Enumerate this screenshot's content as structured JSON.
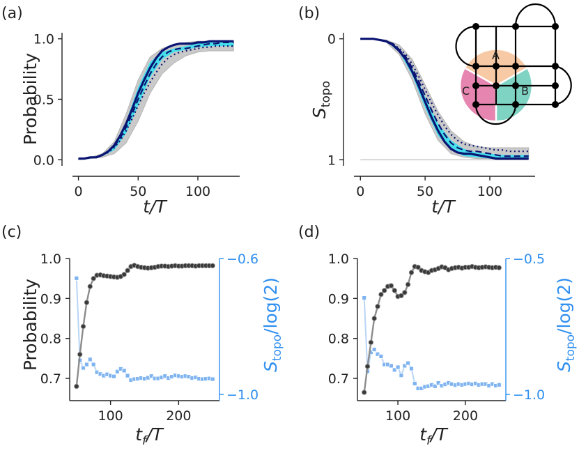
{
  "chart_data": [
    {
      "panel": "(a)",
      "type": "line",
      "xlabel": "t/T",
      "ylabel": "Probability",
      "xlim": [
        -5,
        135
      ],
      "ylim": [
        -0.05,
        1.05
      ],
      "xticks": [
        "0",
        "50",
        "100"
      ],
      "yticks": [
        "0.0",
        "0.5",
        "1.0"
      ],
      "series": [
        {
          "name": "bound-upper",
          "style": "gray",
          "x": [
            0,
            10,
            20,
            30,
            40,
            50,
            60,
            70,
            80,
            90,
            100,
            110,
            120,
            130
          ],
          "y": [
            0.01,
            0.02,
            0.05,
            0.15,
            0.38,
            0.66,
            0.85,
            0.92,
            0.95,
            0.97,
            0.98,
            0.98,
            0.98,
            0.98
          ]
        },
        {
          "name": "bound-lower",
          "style": "gray",
          "x": [
            0,
            10,
            20,
            30,
            40,
            50,
            60,
            70,
            80,
            90,
            100,
            110,
            120,
            130
          ],
          "y": [
            0.0,
            0.01,
            0.02,
            0.05,
            0.14,
            0.32,
            0.55,
            0.71,
            0.8,
            0.86,
            0.89,
            0.9,
            0.9,
            0.9
          ]
        },
        {
          "name": "cyan-upper",
          "style": "cyan",
          "x": [
            0,
            10,
            20,
            30,
            40,
            50,
            60,
            70,
            80,
            90,
            100,
            110,
            120,
            130
          ],
          "y": [
            0.01,
            0.02,
            0.04,
            0.12,
            0.32,
            0.6,
            0.81,
            0.89,
            0.92,
            0.94,
            0.96,
            0.97,
            0.97,
            0.97
          ]
        },
        {
          "name": "cyan-lower",
          "style": "cyan",
          "x": [
            0,
            10,
            20,
            30,
            40,
            50,
            60,
            70,
            80,
            90,
            100,
            110,
            120,
            130
          ],
          "y": [
            0.0,
            0.01,
            0.03,
            0.08,
            0.22,
            0.45,
            0.68,
            0.83,
            0.89,
            0.91,
            0.93,
            0.94,
            0.94,
            0.94
          ]
        },
        {
          "name": "solid",
          "style": "solid",
          "x": [
            0,
            5,
            10,
            15,
            20,
            25,
            30,
            35,
            40,
            45,
            50,
            55,
            60,
            65,
            70,
            75,
            80,
            85,
            90,
            95,
            100,
            105,
            110,
            115,
            120,
            125,
            130
          ],
          "y": [
            0.01,
            0.01,
            0.02,
            0.02,
            0.04,
            0.07,
            0.12,
            0.2,
            0.3,
            0.42,
            0.55,
            0.66,
            0.76,
            0.84,
            0.9,
            0.93,
            0.95,
            0.96,
            0.96,
            0.96,
            0.97,
            0.97,
            0.98,
            0.98,
            0.98,
            0.98,
            0.98
          ]
        },
        {
          "name": "dashed",
          "style": "dashed",
          "x": [
            0,
            5,
            10,
            15,
            20,
            25,
            30,
            35,
            40,
            45,
            50,
            55,
            60,
            65,
            70,
            75,
            80,
            85,
            90,
            95,
            100,
            105,
            110,
            115,
            120,
            125,
            130
          ],
          "y": [
            0.01,
            0.01,
            0.02,
            0.02,
            0.04,
            0.07,
            0.11,
            0.18,
            0.27,
            0.38,
            0.5,
            0.61,
            0.71,
            0.79,
            0.85,
            0.89,
            0.91,
            0.92,
            0.92,
            0.93,
            0.94,
            0.95,
            0.96,
            0.96,
            0.97,
            0.97,
            0.97
          ]
        },
        {
          "name": "dotted",
          "style": "dotted",
          "x": [
            0,
            5,
            10,
            15,
            20,
            25,
            30,
            35,
            40,
            45,
            50,
            55,
            60,
            65,
            70,
            75,
            80,
            85,
            90,
            95,
            100,
            105,
            110,
            115,
            120,
            125,
            130
          ],
          "y": [
            0.01,
            0.01,
            0.02,
            0.02,
            0.04,
            0.06,
            0.1,
            0.16,
            0.24,
            0.34,
            0.45,
            0.55,
            0.64,
            0.72,
            0.79,
            0.84,
            0.87,
            0.89,
            0.9,
            0.91,
            0.92,
            0.93,
            0.93,
            0.94,
            0.94,
            0.94,
            0.94
          ]
        }
      ]
    },
    {
      "panel": "(b)",
      "type": "line",
      "xlabel": "t/T",
      "ylabel": "S_topo",
      "xlim": [
        -5,
        135
      ],
      "ylim": [
        -0.05,
        1.05
      ],
      "y_inverted": true,
      "reference_line": 1,
      "xticks": [
        "0",
        "50",
        "100"
      ],
      "yticks": [
        "0",
        "1"
      ],
      "series": [
        {
          "name": "bound-upper",
          "style": "gray",
          "x": [
            0,
            10,
            20,
            30,
            40,
            50,
            60,
            70,
            80,
            90,
            100,
            110,
            120,
            130
          ],
          "y": [
            0.0,
            0.0,
            0.01,
            0.05,
            0.17,
            0.38,
            0.6,
            0.76,
            0.85,
            0.89,
            0.9,
            0.9,
            0.9,
            0.9
          ]
        },
        {
          "name": "bound-lower",
          "style": "gray",
          "x": [
            0,
            10,
            20,
            30,
            40,
            50,
            60,
            70,
            80,
            90,
            100,
            110,
            120,
            130
          ],
          "y": [
            0.0,
            0.0,
            0.03,
            0.13,
            0.34,
            0.62,
            0.84,
            0.95,
            0.98,
            0.99,
            0.99,
            0.99,
            0.99,
            0.99
          ]
        },
        {
          "name": "cyan-upper",
          "style": "cyan",
          "x": [
            0,
            10,
            20,
            30,
            40,
            50,
            60,
            70,
            80,
            90,
            100,
            110,
            120,
            130
          ],
          "y": [
            0.0,
            0.0,
            0.02,
            0.08,
            0.24,
            0.48,
            0.7,
            0.84,
            0.91,
            0.94,
            0.95,
            0.96,
            0.96,
            0.96
          ]
        },
        {
          "name": "cyan-lower",
          "style": "cyan",
          "x": [
            0,
            10,
            20,
            30,
            40,
            50,
            60,
            70,
            80,
            90,
            100,
            110,
            120,
            130
          ],
          "y": [
            0.0,
            0.0,
            0.02,
            0.11,
            0.3,
            0.57,
            0.8,
            0.92,
            0.97,
            0.98,
            0.99,
            0.99,
            0.99,
            0.99
          ]
        },
        {
          "name": "solid",
          "style": "solid",
          "x": [
            0,
            5,
            10,
            15,
            20,
            25,
            30,
            35,
            40,
            45,
            50,
            55,
            60,
            65,
            70,
            75,
            80,
            85,
            90,
            95,
            100,
            105,
            110,
            115,
            120,
            125,
            130
          ],
          "y": [
            0.0,
            0.0,
            0.0,
            0.01,
            0.02,
            0.05,
            0.1,
            0.17,
            0.27,
            0.39,
            0.52,
            0.65,
            0.76,
            0.85,
            0.91,
            0.94,
            0.95,
            0.95,
            0.96,
            0.97,
            0.98,
            0.99,
            0.99,
            0.99,
            0.99,
            0.99,
            0.99
          ]
        },
        {
          "name": "dashed",
          "style": "dashed",
          "x": [
            0,
            5,
            10,
            15,
            20,
            25,
            30,
            35,
            40,
            45,
            50,
            55,
            60,
            65,
            70,
            75,
            80,
            85,
            90,
            95,
            100,
            105,
            110,
            115,
            120,
            125,
            130
          ],
          "y": [
            0.0,
            0.0,
            0.0,
            0.01,
            0.02,
            0.04,
            0.09,
            0.15,
            0.24,
            0.35,
            0.47,
            0.59,
            0.7,
            0.79,
            0.86,
            0.9,
            0.92,
            0.93,
            0.93,
            0.94,
            0.95,
            0.96,
            0.97,
            0.97,
            0.97,
            0.97,
            0.97
          ]
        },
        {
          "name": "dotted",
          "style": "dotted",
          "x": [
            0,
            5,
            10,
            15,
            20,
            25,
            30,
            35,
            40,
            45,
            50,
            55,
            60,
            65,
            70,
            75,
            80,
            85,
            90,
            95,
            100,
            105,
            110,
            115,
            120,
            125,
            130
          ],
          "y": [
            0.0,
            0.0,
            0.0,
            0.01,
            0.02,
            0.04,
            0.08,
            0.13,
            0.21,
            0.31,
            0.42,
            0.53,
            0.63,
            0.72,
            0.79,
            0.84,
            0.87,
            0.88,
            0.89,
            0.9,
            0.91,
            0.92,
            0.92,
            0.93,
            0.93,
            0.93,
            0.93
          ]
        }
      ],
      "inset": {
        "region_labels": [
          "A",
          "B",
          "C"
        ],
        "region_colors": [
          "#f7c9a4",
          "#7fd3c3",
          "#e585b0"
        ]
      }
    },
    {
      "panel": "(c)",
      "type": "line",
      "xlabel": "t_f/T",
      "ylabel": "Probability",
      "ylabel_right": "S_topo/log(2)",
      "xlim": [
        40,
        260
      ],
      "ylim": [
        0.66,
        1.0
      ],
      "ylim_right": [
        -1.0,
        -0.6
      ],
      "xticks": [
        "100",
        "200"
      ],
      "yticks": [
        "0.7",
        "0.8",
        "0.9",
        "1.0"
      ],
      "yticks_right": [
        "−0.6",
        "−1.0"
      ],
      "x": [
        50,
        55,
        60,
        65,
        70,
        75,
        80,
        85,
        90,
        95,
        100,
        105,
        110,
        115,
        120,
        125,
        130,
        135,
        140,
        145,
        150,
        155,
        160,
        165,
        170,
        175,
        180,
        185,
        190,
        195,
        200,
        205,
        210,
        215,
        220,
        225,
        230,
        235,
        240,
        245,
        250
      ],
      "series": [
        {
          "name": "Probability",
          "axis": "left",
          "values": [
            0.68,
            0.76,
            0.83,
            0.89,
            0.93,
            0.95,
            0.958,
            0.959,
            0.957,
            0.956,
            0.955,
            0.954,
            0.953,
            0.955,
            0.96,
            0.97,
            0.98,
            0.983,
            0.98,
            0.978,
            0.977,
            0.976,
            0.977,
            0.978,
            0.98,
            0.981,
            0.981,
            0.98,
            0.981,
            0.982,
            0.981,
            0.981,
            0.982,
            0.982,
            0.982,
            0.981,
            0.982,
            0.982,
            0.982,
            0.982,
            0.982
          ]
        },
        {
          "name": "S_topo/log(2)",
          "axis": "right",
          "values": [
            -0.658,
            -0.9,
            -0.922,
            -0.912,
            -0.897,
            -0.912,
            -0.935,
            -0.94,
            -0.945,
            -0.941,
            -0.945,
            -0.947,
            -0.933,
            -0.925,
            -0.93,
            -0.945,
            -0.958,
            -0.955,
            -0.954,
            -0.952,
            -0.954,
            -0.951,
            -0.946,
            -0.953,
            -0.953,
            -0.95,
            -0.946,
            -0.952,
            -0.948,
            -0.944,
            -0.946,
            -0.948,
            -0.946,
            -0.948,
            -0.952,
            -0.95,
            -0.954,
            -0.955,
            -0.954,
            -0.953,
            -0.955
          ]
        }
      ]
    },
    {
      "panel": "(d)",
      "type": "line",
      "xlabel": "t_f/T",
      "ylabel": "",
      "ylabel_right": "S_topo/log(2)",
      "xlim": [
        40,
        260
      ],
      "ylim": [
        0.66,
        1.0
      ],
      "ylim_right": [
        -1.0,
        -0.5
      ],
      "xticks": [
        "100",
        "200"
      ],
      "yticks": [
        "0.7",
        "0.8",
        "0.9",
        "1.0"
      ],
      "yticks_right": [
        "−0.5",
        "−1.0"
      ],
      "x": [
        50,
        55,
        60,
        65,
        70,
        75,
        80,
        85,
        90,
        95,
        100,
        105,
        110,
        115,
        120,
        125,
        130,
        135,
        140,
        145,
        150,
        155,
        160,
        165,
        170,
        175,
        180,
        185,
        190,
        195,
        200,
        205,
        210,
        215,
        220,
        225,
        230,
        235,
        240,
        245,
        250
      ],
      "series": [
        {
          "name": "Probability",
          "axis": "left",
          "values": [
            0.665,
            0.73,
            0.79,
            0.85,
            0.88,
            0.91,
            0.92,
            0.93,
            0.932,
            0.92,
            0.905,
            0.907,
            0.915,
            0.935,
            0.965,
            0.98,
            0.978,
            0.97,
            0.967,
            0.965,
            0.97,
            0.972,
            0.975,
            0.979,
            0.977,
            0.972,
            0.975,
            0.977,
            0.978,
            0.976,
            0.978,
            0.978,
            0.98,
            0.978,
            0.977,
            0.978,
            0.979,
            0.978,
            0.977,
            0.978,
            0.977
          ]
        },
        {
          "name": "S_topo/log(2)",
          "axis": "right",
          "values": [
            -0.645,
            -0.915,
            -0.845,
            -0.835,
            -0.852,
            -0.86,
            -0.89,
            -0.89,
            -0.895,
            -0.91,
            -0.9,
            -0.93,
            -0.895,
            -0.885,
            -0.905,
            -0.96,
            -0.978,
            -0.978,
            -0.972,
            -0.97,
            -0.965,
            -0.97,
            -0.958,
            -0.968,
            -0.963,
            -0.958,
            -0.962,
            -0.966,
            -0.962,
            -0.965,
            -0.962,
            -0.96,
            -0.963,
            -0.96,
            -0.965,
            -0.962,
            -0.962,
            -0.968,
            -0.962,
            -0.968,
            -0.965
          ]
        }
      ]
    }
  ],
  "colors": {
    "gray_band": "#c6c6c6",
    "cyan_band": "#3ee0ee",
    "navy": "#0a1472",
    "dark": "#3a3a3a",
    "blue_axis": "#2f8ff0",
    "light_blue": "#7fb4f0"
  }
}
